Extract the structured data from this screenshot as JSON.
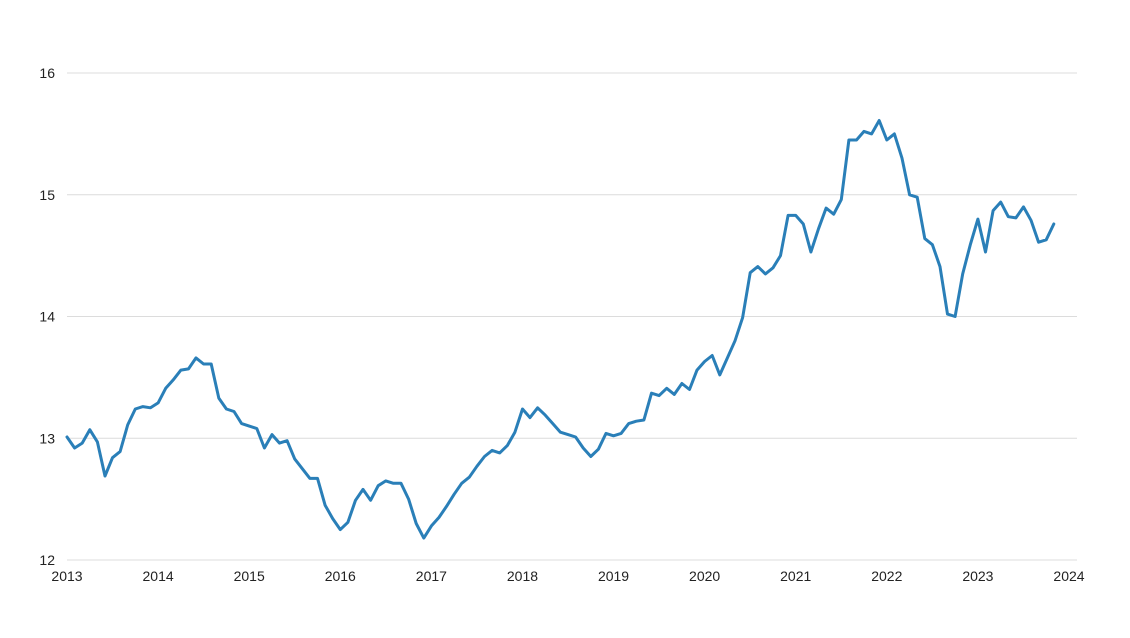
{
  "chart_data": {
    "type": "line",
    "title": "",
    "xlabel": "",
    "ylabel": "",
    "x_range": [
      2013,
      2024
    ],
    "ylim": [
      12,
      16
    ],
    "grid": true,
    "legend": "none",
    "x_ticks": [
      "2013",
      "2014",
      "2015",
      "2016",
      "2017",
      "2018",
      "2019",
      "2020",
      "2021",
      "2022",
      "2023",
      "2024"
    ],
    "y_ticks": [
      "12",
      "13",
      "14",
      "15",
      "16"
    ],
    "series": [
      {
        "color": "#2a7fb8",
        "x": [
          "2013-01",
          "2013-02",
          "2013-03",
          "2013-04",
          "2013-05",
          "2013-06",
          "2013-07",
          "2013-08",
          "2013-09",
          "2013-10",
          "2013-11",
          "2013-12",
          "2014-01",
          "2014-02",
          "2014-03",
          "2014-04",
          "2014-05",
          "2014-06",
          "2014-07",
          "2014-08",
          "2014-09",
          "2014-10",
          "2014-11",
          "2014-12",
          "2015-01",
          "2015-02",
          "2015-03",
          "2015-04",
          "2015-05",
          "2015-06",
          "2015-07",
          "2015-08",
          "2015-09",
          "2015-10",
          "2015-11",
          "2015-12",
          "2016-01",
          "2016-02",
          "2016-03",
          "2016-04",
          "2016-05",
          "2016-06",
          "2016-07",
          "2016-08",
          "2016-09",
          "2016-10",
          "2016-11",
          "2016-12",
          "2017-01",
          "2017-02",
          "2017-03",
          "2017-04",
          "2017-05",
          "2017-06",
          "2017-07",
          "2017-08",
          "2017-09",
          "2017-10",
          "2017-11",
          "2017-12",
          "2018-01",
          "2018-02",
          "2018-03",
          "2018-04",
          "2018-05",
          "2018-06",
          "2018-07",
          "2018-08",
          "2018-09",
          "2018-10",
          "2018-11",
          "2018-12",
          "2019-01",
          "2019-02",
          "2019-03",
          "2019-04",
          "2019-05",
          "2019-06",
          "2019-07",
          "2019-08",
          "2019-09",
          "2019-10",
          "2019-11",
          "2019-12",
          "2020-01",
          "2020-02",
          "2020-03",
          "2020-04",
          "2020-05",
          "2020-06",
          "2020-07",
          "2020-08",
          "2020-09",
          "2020-10",
          "2020-11",
          "2020-12",
          "2021-01",
          "2021-02",
          "2021-03",
          "2021-04",
          "2021-05",
          "2021-06",
          "2021-07",
          "2021-08",
          "2021-09",
          "2021-10",
          "2021-11",
          "2021-12",
          "2022-01",
          "2022-02",
          "2022-03",
          "2022-04",
          "2022-05",
          "2022-06",
          "2022-07",
          "2022-08",
          "2022-09",
          "2022-10",
          "2022-11",
          "2022-12",
          "2023-01",
          "2023-02",
          "2023-03",
          "2023-04",
          "2023-05",
          "2023-06",
          "2023-07",
          "2023-08",
          "2023-09",
          "2023-10",
          "2023-11"
        ],
        "values": [
          13.01,
          12.92,
          12.96,
          13.07,
          12.97,
          12.69,
          12.84,
          12.89,
          13.11,
          13.24,
          13.26,
          13.25,
          13.29,
          13.41,
          13.48,
          13.56,
          13.57,
          13.66,
          13.61,
          13.61,
          13.33,
          13.24,
          13.22,
          13.12,
          13.1,
          13.08,
          12.92,
          13.03,
          12.96,
          12.98,
          12.83,
          12.75,
          12.67,
          12.67,
          12.45,
          12.34,
          12.25,
          12.31,
          12.49,
          12.58,
          12.49,
          12.61,
          12.65,
          12.63,
          12.63,
          12.5,
          12.3,
          12.18,
          12.28,
          12.35,
          12.44,
          12.54,
          12.63,
          12.68,
          12.77,
          12.85,
          12.9,
          12.88,
          12.94,
          13.05,
          13.24,
          13.17,
          13.25,
          13.19,
          13.12,
          13.05,
          13.03,
          13.01,
          12.92,
          12.85,
          12.91,
          13.04,
          13.02,
          13.04,
          13.12,
          13.14,
          13.15,
          13.37,
          13.35,
          13.41,
          13.36,
          13.45,
          13.4,
          13.56,
          13.63,
          13.68,
          13.52,
          13.66,
          13.8,
          13.99,
          14.36,
          14.41,
          14.35,
          14.4,
          14.5,
          14.83,
          14.83,
          14.76,
          14.53,
          14.72,
          14.89,
          14.84,
          14.96,
          15.45,
          15.45,
          15.52,
          15.5,
          15.61,
          15.45,
          15.5,
          15.3,
          15.0,
          14.98,
          14.64,
          14.59,
          14.41,
          14.02,
          14.0,
          14.35,
          14.59,
          14.8,
          14.53,
          14.87,
          14.94,
          14.82,
          14.81,
          14.9,
          14.79,
          14.61,
          14.63,
          14.76
        ]
      }
    ]
  }
}
